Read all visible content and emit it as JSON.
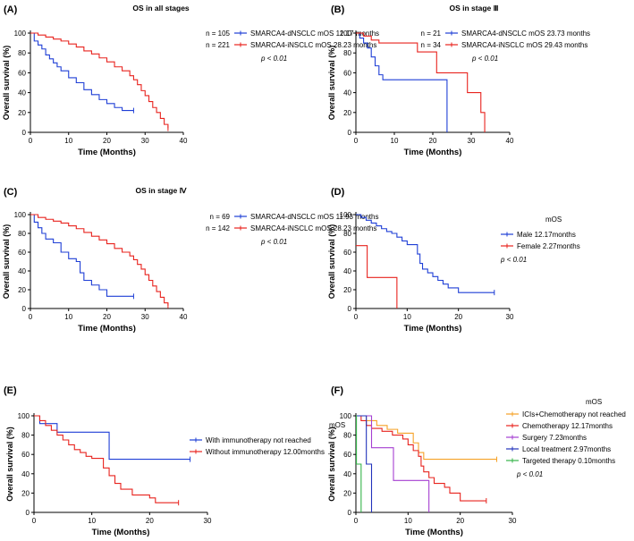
{
  "figure": {
    "name": "Kaplan-Meier overall survival curves"
  },
  "colors": {
    "blue": "#1f3fd6",
    "red": "#e8231e",
    "orange": "#f5a126",
    "purple": "#a53fd1",
    "navy": "#2233bb",
    "green": "#35b44a"
  },
  "chart_data": [
    {
      "panel": "(A)",
      "type": "line",
      "title": "OS in all stages",
      "xlabel": "Time (Months)",
      "ylabel": "Overall survival (%)",
      "xlim": [
        0,
        40
      ],
      "ylim": [
        0,
        100
      ],
      "xticks": [
        "0",
        "10",
        "20",
        "30",
        "40"
      ],
      "yticks": [
        "0",
        "20",
        "40",
        "60",
        "80",
        "100"
      ],
      "legend_header": "",
      "note": "p < 0.01",
      "series": [
        {
          "n": "n = 105",
          "label": "SMARCA4-dNSCLC mOS 12.17 months",
          "color": "#1f3fd6",
          "points": [
            [
              0,
              100
            ],
            [
              1,
              92
            ],
            [
              2,
              88
            ],
            [
              3,
              84
            ],
            [
              4,
              78
            ],
            [
              5,
              74
            ],
            [
              6,
              70
            ],
            [
              7,
              66
            ],
            [
              8,
              62
            ],
            [
              10,
              55
            ],
            [
              12,
              50
            ],
            [
              14,
              43
            ],
            [
              16,
              38
            ],
            [
              18,
              33
            ],
            [
              20,
              29
            ],
            [
              22,
              25
            ],
            [
              24,
              22
            ],
            [
              27,
              22
            ]
          ]
        },
        {
          "n": "n = 221",
          "label": "SMARCA4-iNSCLC mOS 28.23 months",
          "color": "#e8231e",
          "points": [
            [
              0,
              100
            ],
            [
              2,
              98
            ],
            [
              4,
              96
            ],
            [
              6,
              94
            ],
            [
              8,
              92
            ],
            [
              10,
              89
            ],
            [
              12,
              86
            ],
            [
              14,
              82
            ],
            [
              16,
              79
            ],
            [
              18,
              75
            ],
            [
              20,
              71
            ],
            [
              22,
              66
            ],
            [
              24,
              62
            ],
            [
              26,
              57
            ],
            [
              27,
              53
            ],
            [
              28,
              48
            ],
            [
              29,
              42
            ],
            [
              30,
              37
            ],
            [
              31,
              31
            ],
            [
              32,
              25
            ],
            [
              33,
              20
            ],
            [
              34,
              14
            ],
            [
              35,
              8
            ],
            [
              36,
              4
            ]
          ]
        }
      ]
    },
    {
      "panel": "(B)",
      "type": "line",
      "title": "OS in stage Ⅲ",
      "xlabel": "Time (Months)",
      "ylabel": "Overall survival (%)",
      "xlim": [
        0,
        40
      ],
      "ylim": [
        0,
        100
      ],
      "xticks": [
        "0",
        "10",
        "20",
        "30",
        "40"
      ],
      "yticks": [
        "0",
        "20",
        "40",
        "60",
        "80",
        "100"
      ],
      "legend_header": "",
      "note": "p < 0.01",
      "series": [
        {
          "n": "n = 21",
          "label": "SMARCA4-dNSCLC mOS 23.73 months",
          "color": "#1f3fd6",
          "points": [
            [
              0,
              100
            ],
            [
              1,
              95
            ],
            [
              2,
              90
            ],
            [
              3,
              85
            ],
            [
              4,
              76
            ],
            [
              5,
              67
            ],
            [
              6,
              58
            ],
            [
              7,
              53
            ],
            [
              23.7,
              53
            ],
            [
              23.7,
              0
            ]
          ]
        },
        {
          "n": "n = 34",
          "label": "SMARCA4-iNSCLC mOS 29.43 months",
          "color": "#e8231e",
          "points": [
            [
              0,
              100
            ],
            [
              2,
              97
            ],
            [
              4,
              93
            ],
            [
              6,
              90
            ],
            [
              16,
              90
            ],
            [
              16,
              81
            ],
            [
              21,
              81
            ],
            [
              21,
              60
            ],
            [
              29,
              60
            ],
            [
              29,
              40
            ],
            [
              32.5,
              40
            ],
            [
              32.5,
              20
            ],
            [
              33.5,
              20
            ],
            [
              33.5,
              0
            ]
          ]
        }
      ]
    },
    {
      "panel": "(C)",
      "type": "line",
      "title": "OS in stage Ⅳ",
      "xlabel": "Time (Months)",
      "ylabel": "Overall survival (%)",
      "xlim": [
        0,
        40
      ],
      "ylim": [
        0,
        100
      ],
      "xticks": [
        "0",
        "10",
        "20",
        "30",
        "40"
      ],
      "yticks": [
        "0",
        "20",
        "40",
        "60",
        "80",
        "100"
      ],
      "legend_header": "",
      "note": "p < 0.01",
      "series": [
        {
          "n": "n = 69",
          "label": "SMARCA4-dNSCLC mOS 11.93 months",
          "color": "#1f3fd6",
          "points": [
            [
              0,
              100
            ],
            [
              1,
              92
            ],
            [
              2,
              86
            ],
            [
              3,
              80
            ],
            [
              4,
              74
            ],
            [
              6,
              70
            ],
            [
              8,
              60
            ],
            [
              10,
              53
            ],
            [
              12,
              50
            ],
            [
              13,
              38
            ],
            [
              14,
              30
            ],
            [
              16,
              25
            ],
            [
              18,
              20
            ],
            [
              20,
              13
            ],
            [
              27,
              13
            ]
          ]
        },
        {
          "n": "n = 142",
          "label": "SMARCA4-iNSCLC mOS 28.23 months",
          "color": "#e8231e",
          "points": [
            [
              0,
              100
            ],
            [
              2,
              97
            ],
            [
              4,
              95
            ],
            [
              6,
              93
            ],
            [
              8,
              91
            ],
            [
              10,
              88
            ],
            [
              12,
              85
            ],
            [
              14,
              81
            ],
            [
              16,
              77
            ],
            [
              18,
              73
            ],
            [
              20,
              69
            ],
            [
              22,
              64
            ],
            [
              24,
              60
            ],
            [
              26,
              56
            ],
            [
              27,
              52
            ],
            [
              28,
              47
            ],
            [
              29,
              42
            ],
            [
              30,
              36
            ],
            [
              31,
              30
            ],
            [
              32,
              24
            ],
            [
              33,
              18
            ],
            [
              34,
              12
            ],
            [
              35,
              6
            ],
            [
              36,
              3
            ]
          ]
        }
      ]
    },
    {
      "panel": "(D)",
      "type": "line",
      "title": "",
      "xlabel": "Time (Months)",
      "ylabel": "Overall survival (%)",
      "xlim": [
        0,
        30
      ],
      "ylim": [
        0,
        100
      ],
      "xticks": [
        "0",
        "10",
        "20",
        "30"
      ],
      "yticks": [
        "0",
        "20",
        "40",
        "60",
        "80",
        "100"
      ],
      "legend_header": "mOS",
      "note": "p < 0.01",
      "series": [
        {
          "n": "",
          "label": "Male     12.17months",
          "color": "#1f3fd6",
          "points": [
            [
              0,
              100
            ],
            [
              1,
              97
            ],
            [
              2,
              94
            ],
            [
              3,
              91
            ],
            [
              4,
              88
            ],
            [
              5,
              85
            ],
            [
              6,
              82
            ],
            [
              7,
              80
            ],
            [
              8,
              76
            ],
            [
              9,
              72
            ],
            [
              10,
              68
            ],
            [
              11,
              68
            ],
            [
              12,
              58
            ],
            [
              12.5,
              48
            ],
            [
              13,
              42
            ],
            [
              14,
              38
            ],
            [
              15,
              34
            ],
            [
              16,
              30
            ],
            [
              17,
              26
            ],
            [
              18,
              22
            ],
            [
              20,
              17
            ],
            [
              27,
              17
            ]
          ]
        },
        {
          "n": "",
          "label": "Female   2.27months",
          "color": "#e8231e",
          "points": [
            [
              0,
              67
            ],
            [
              2.2,
              67
            ],
            [
              2.2,
              33
            ],
            [
              8,
              33
            ],
            [
              8,
              0
            ]
          ]
        }
      ]
    },
    {
      "panel": "(E)",
      "type": "line",
      "title": "",
      "xlabel": "Time (Months)",
      "ylabel": "Overall survival (%)",
      "xlim": [
        0,
        30
      ],
      "ylim": [
        0,
        100
      ],
      "xticks": [
        "0",
        "10",
        "20",
        "30"
      ],
      "yticks": [
        "0",
        "20",
        "40",
        "60",
        "80",
        "100"
      ],
      "legend_header": "mOS",
      "note": "",
      "series": [
        {
          "n": "",
          "label": "With immunotherapy    not reached",
          "color": "#1f3fd6",
          "points": [
            [
              0,
              100
            ],
            [
              1,
              92
            ],
            [
              4,
              92
            ],
            [
              4,
              83
            ],
            [
              13,
              83
            ],
            [
              13,
              55
            ],
            [
              27,
              55
            ]
          ]
        },
        {
          "n": "",
          "label": "Without immunotherapy 12.00months",
          "color": "#e8231e",
          "points": [
            [
              0,
              100
            ],
            [
              1,
              95
            ],
            [
              2,
              90
            ],
            [
              3,
              85
            ],
            [
              4,
              80
            ],
            [
              5,
              75
            ],
            [
              6,
              70
            ],
            [
              7,
              65
            ],
            [
              8,
              62
            ],
            [
              9,
              58
            ],
            [
              10,
              56
            ],
            [
              11,
              56
            ],
            [
              12,
              46
            ],
            [
              13,
              38
            ],
            [
              14,
              30
            ],
            [
              15,
              24
            ],
            [
              17,
              18
            ],
            [
              20,
              15
            ],
            [
              21,
              10
            ],
            [
              25,
              10
            ]
          ]
        }
      ]
    },
    {
      "panel": "(F)",
      "type": "line",
      "title": "",
      "xlabel": "Time (Months)",
      "ylabel": "Overall survival (%)",
      "xlim": [
        0,
        30
      ],
      "ylim": [
        0,
        100
      ],
      "xticks": [
        "0",
        "10",
        "20",
        "30"
      ],
      "yticks": [
        "0",
        "20",
        "40",
        "60",
        "80",
        "100"
      ],
      "legend_header": "mOS",
      "note": "p < 0.01",
      "series": [
        {
          "n": "",
          "label": "ICIs+Chemotherapy   not reached",
          "color": "#f5a126",
          "points": [
            [
              0,
              100
            ],
            [
              2,
              95
            ],
            [
              4,
              90
            ],
            [
              6,
              86
            ],
            [
              8,
              82
            ],
            [
              10,
              82
            ],
            [
              11,
              72
            ],
            [
              12,
              62
            ],
            [
              13,
              55
            ],
            [
              27,
              55
            ]
          ]
        },
        {
          "n": "",
          "label": "Chemotherapy         12.17months",
          "color": "#e8231e",
          "points": [
            [
              0,
              100
            ],
            [
              1,
              95
            ],
            [
              2,
              90
            ],
            [
              3,
              87
            ],
            [
              5,
              84
            ],
            [
              7,
              80
            ],
            [
              9,
              76
            ],
            [
              10,
              70
            ],
            [
              11,
              64
            ],
            [
              12,
              58
            ],
            [
              12.5,
              48
            ],
            [
              13,
              42
            ],
            [
              14,
              36
            ],
            [
              15,
              30
            ],
            [
              17,
              26
            ],
            [
              18,
              20
            ],
            [
              20,
              12
            ],
            [
              25,
              12
            ]
          ]
        },
        {
          "n": "",
          "label": "Surgery                7.23months",
          "color": "#a53fd1",
          "points": [
            [
              0,
              100
            ],
            [
              3,
              100
            ],
            [
              3,
              67
            ],
            [
              7.2,
              67
            ],
            [
              7.2,
              33
            ],
            [
              14,
              33
            ],
            [
              14,
              0
            ]
          ]
        },
        {
          "n": "",
          "label": "Local treatment        2.97months",
          "color": "#2233bb",
          "points": [
            [
              0,
              100
            ],
            [
              2,
              100
            ],
            [
              2,
              50
            ],
            [
              3,
              50
            ],
            [
              3,
              0
            ]
          ]
        },
        {
          "n": "",
          "label": "Targeted therapy       0.10months",
          "color": "#35b44a",
          "points": [
            [
              0,
              100
            ],
            [
              0.1,
              100
            ],
            [
              0.1,
              50
            ],
            [
              1,
              50
            ],
            [
              1,
              0
            ]
          ]
        }
      ]
    }
  ]
}
